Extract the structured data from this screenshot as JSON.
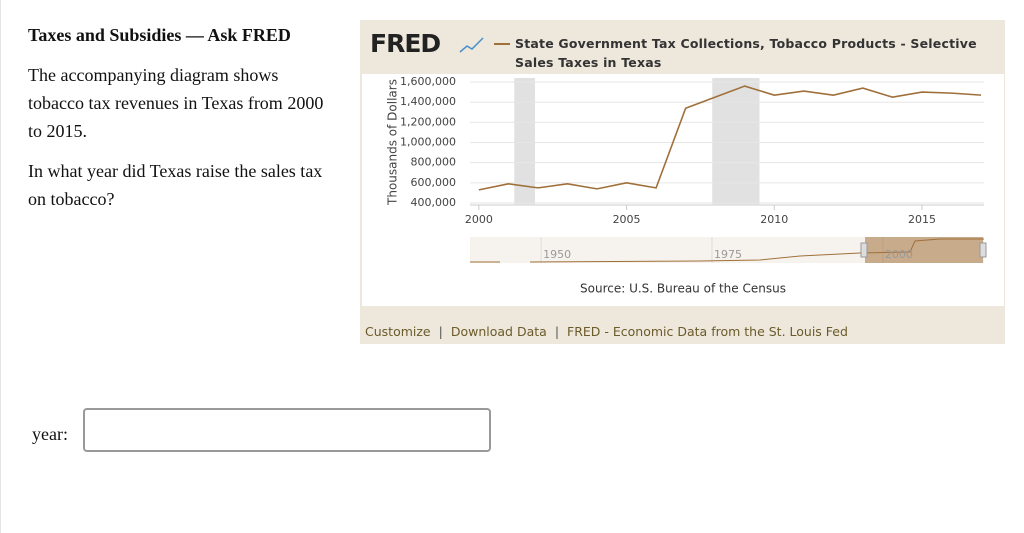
{
  "question": {
    "title": "Taxes and Subsidies — Ask FRED",
    "paragraph": "The accompanying diagram shows tobacco tax revenues in Texas from 2000 to 2015.",
    "prompt": "In what year did Texas raise the sales tax on tobacco?",
    "answer_label": "year:"
  },
  "chart_data": {
    "type": "line",
    "logo": "FRED",
    "y_label": "Thousands of Dollars",
    "x": [
      2000,
      2001,
      2002,
      2003,
      2004,
      2005,
      2006,
      2007,
      2008,
      2009,
      2010,
      2011,
      2012,
      2013,
      2014,
      2015,
      2016,
      2017
    ],
    "series": [
      {
        "name": "State Government Tax Collections, Tobacco Products - Selective Sales Taxes in Texas",
        "color": "#a0703a",
        "values": [
          530000,
          590000,
          550000,
          590000,
          540000,
          600000,
          550000,
          1340000,
          1450000,
          1560000,
          1470000,
          1510000,
          1470000,
          1540000,
          1450000,
          1500000,
          1490000,
          1470000
        ]
      }
    ],
    "recessions": [
      [
        2001.2,
        2001.9
      ],
      [
        2007.9,
        2009.5
      ]
    ],
    "xlim": [
      1999.7,
      2017.1
    ],
    "xticks": [
      2000,
      2005,
      2010,
      2015
    ],
    "ylim": [
      380000,
      1640000
    ],
    "yticks": [
      {
        "value": 400000,
        "label": "400,000"
      },
      {
        "value": 600000,
        "label": "600,000"
      },
      {
        "value": 800000,
        "label": "800,000"
      },
      {
        "value": 1000000,
        "label": "1,000,000"
      },
      {
        "value": 1200000,
        "label": "1,200,000"
      },
      {
        "value": 1400000,
        "label": "1,400,000"
      },
      {
        "value": 1600000,
        "label": "1,600,000"
      }
    ],
    "grid": true,
    "navigator": {
      "xlim": [
        1939.6,
        2014.8
      ],
      "xticks": [
        1950,
        1975,
        2000
      ]
    },
    "source": "Source: U.S. Bureau of the Census",
    "links": [
      "Customize",
      "Download Data",
      "FRED - Economic Data from the St. Louis Fed"
    ],
    "links_separator": "|"
  }
}
